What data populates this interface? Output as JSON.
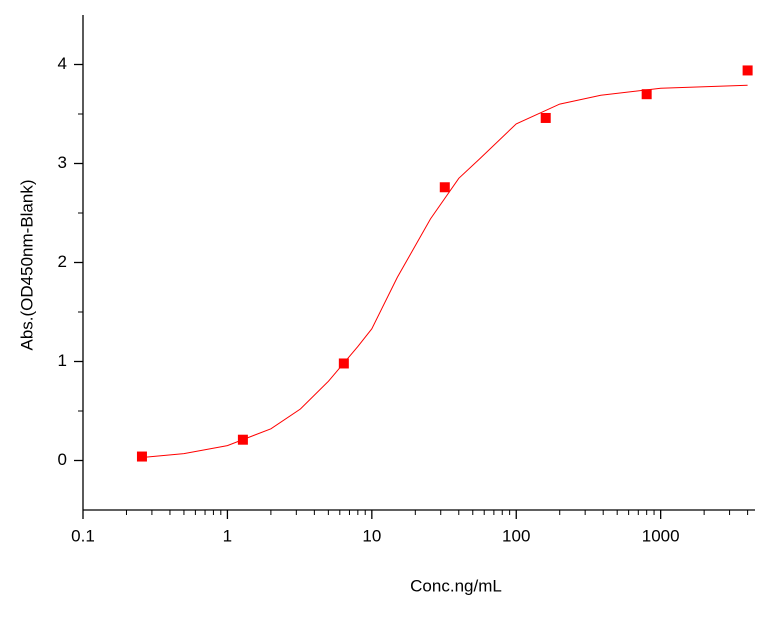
{
  "chart_data": {
    "type": "scatter",
    "xlabel": "Conc.ng/mL",
    "ylabel": "Abs.(OD450nm-Blank)",
    "xscale": "log",
    "xlim": [
      0.1,
      4500
    ],
    "xticks": [
      0.1,
      1,
      10,
      100,
      1000
    ],
    "ylim": [
      -0.5,
      4.5
    ],
    "yticks": [
      0,
      1,
      2,
      3,
      4
    ],
    "series": [
      {
        "type": "scatter",
        "color": "#ff0000",
        "x": [
          0.256,
          1.28,
          6.4,
          32,
          160,
          800,
          4000
        ],
        "values": [
          0.04,
          0.21,
          0.98,
          2.76,
          3.46,
          3.7,
          3.94
        ]
      },
      {
        "type": "line",
        "color": "#ff0000",
        "x": [
          0.256,
          0.5,
          1,
          2,
          3.2,
          5,
          8,
          10,
          15,
          25.5,
          40,
          56,
          100,
          200,
          385,
          1000,
          4000
        ],
        "values": [
          0.03,
          0.07,
          0.15,
          0.32,
          0.52,
          0.8,
          1.15,
          1.33,
          1.85,
          2.44,
          2.85,
          3.05,
          3.4,
          3.6,
          3.69,
          3.76,
          3.79
        ]
      }
    ]
  }
}
